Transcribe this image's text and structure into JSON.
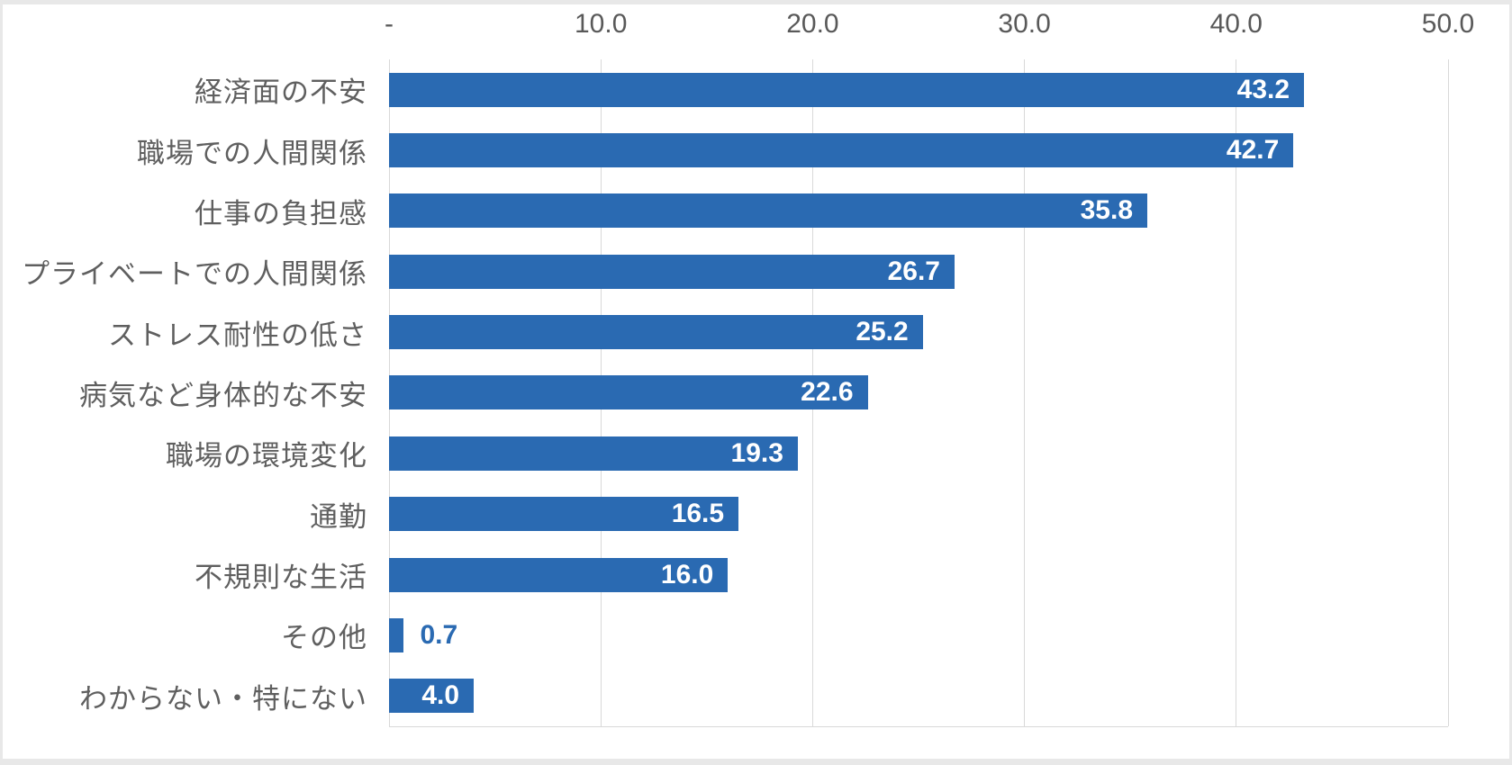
{
  "chart_data": {
    "type": "bar",
    "orientation": "horizontal",
    "title": "",
    "categories": [
      "経済面の不安",
      "職場での人間関係",
      "仕事の負担感",
      "プライベートでの人間関係",
      "ストレス耐性の低さ",
      "病気など身体的な不安",
      "職場の環境変化",
      "通勤",
      "不規則な生活",
      "その他",
      "わからない・特にない"
    ],
    "values": [
      43.2,
      42.7,
      35.8,
      26.7,
      25.2,
      22.6,
      19.3,
      16.5,
      16.0,
      0.7,
      4.0
    ],
    "value_labels": [
      "43.2",
      "42.7",
      "35.8",
      "26.7",
      "25.2",
      "22.6",
      "19.3",
      "16.5",
      "16.0",
      "0.7",
      "4.0"
    ],
    "x_ticks": [
      "-",
      "10.0",
      "20.0",
      "30.0",
      "40.0",
      "50.0"
    ],
    "x_tick_values": [
      0,
      10,
      20,
      30,
      40,
      50
    ],
    "xlim": [
      0,
      50
    ],
    "grid": "vertical",
    "legend": "none",
    "colors": {
      "bar": "#2A6AB2",
      "value_label_inside": "#FFFFFF",
      "value_label_outside": "#2A6AB2",
      "category_label": "#5F5F5F",
      "axis_tick_label": "#595959",
      "gridline": "#D9D9D9",
      "background": "#FFFFFF",
      "page_edge": "#E8E8E8"
    }
  }
}
